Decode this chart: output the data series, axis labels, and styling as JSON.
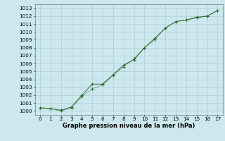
{
  "xlabel": "Graphe pression niveau de la mer (hPa)",
  "xlim": [
    -0.5,
    17.5
  ],
  "ylim": [
    999.5,
    1013.5
  ],
  "yticks": [
    1000,
    1001,
    1002,
    1003,
    1004,
    1005,
    1006,
    1007,
    1008,
    1009,
    1010,
    1011,
    1012,
    1013
  ],
  "xticks": [
    0,
    1,
    2,
    3,
    4,
    5,
    6,
    7,
    8,
    9,
    10,
    11,
    12,
    13,
    14,
    15,
    16,
    17
  ],
  "series1_x": [
    0,
    1,
    2,
    3,
    4,
    5,
    6,
    7,
    8,
    9,
    10,
    11,
    12,
    13,
    14,
    15,
    16,
    17
  ],
  "series1_y": [
    1000.4,
    1000.3,
    1000.1,
    1000.5,
    1002.0,
    1003.4,
    1003.4,
    1004.6,
    1005.8,
    1006.5,
    1008.0,
    1009.2,
    1010.5,
    1011.3,
    1011.5,
    1011.8,
    1012.0,
    1012.7
  ],
  "series2_x": [
    0,
    1,
    2,
    3,
    4,
    5,
    6,
    7,
    8,
    9,
    10,
    11,
    12,
    13,
    14,
    15,
    16,
    17
  ],
  "series2_y": [
    1000.4,
    1000.3,
    1000.0,
    1000.4,
    1001.8,
    1002.8,
    1003.3,
    1004.5,
    1005.6,
    1006.6,
    1008.0,
    1009.0,
    1010.5,
    1011.3,
    1011.5,
    1011.9,
    1012.0,
    1012.7
  ],
  "line_color": "#2d6a2d",
  "bg_color": "#cce8ee",
  "grid_color": "#b0ccd4",
  "tick_fontsize": 5.2,
  "label_fontsize": 6.0
}
